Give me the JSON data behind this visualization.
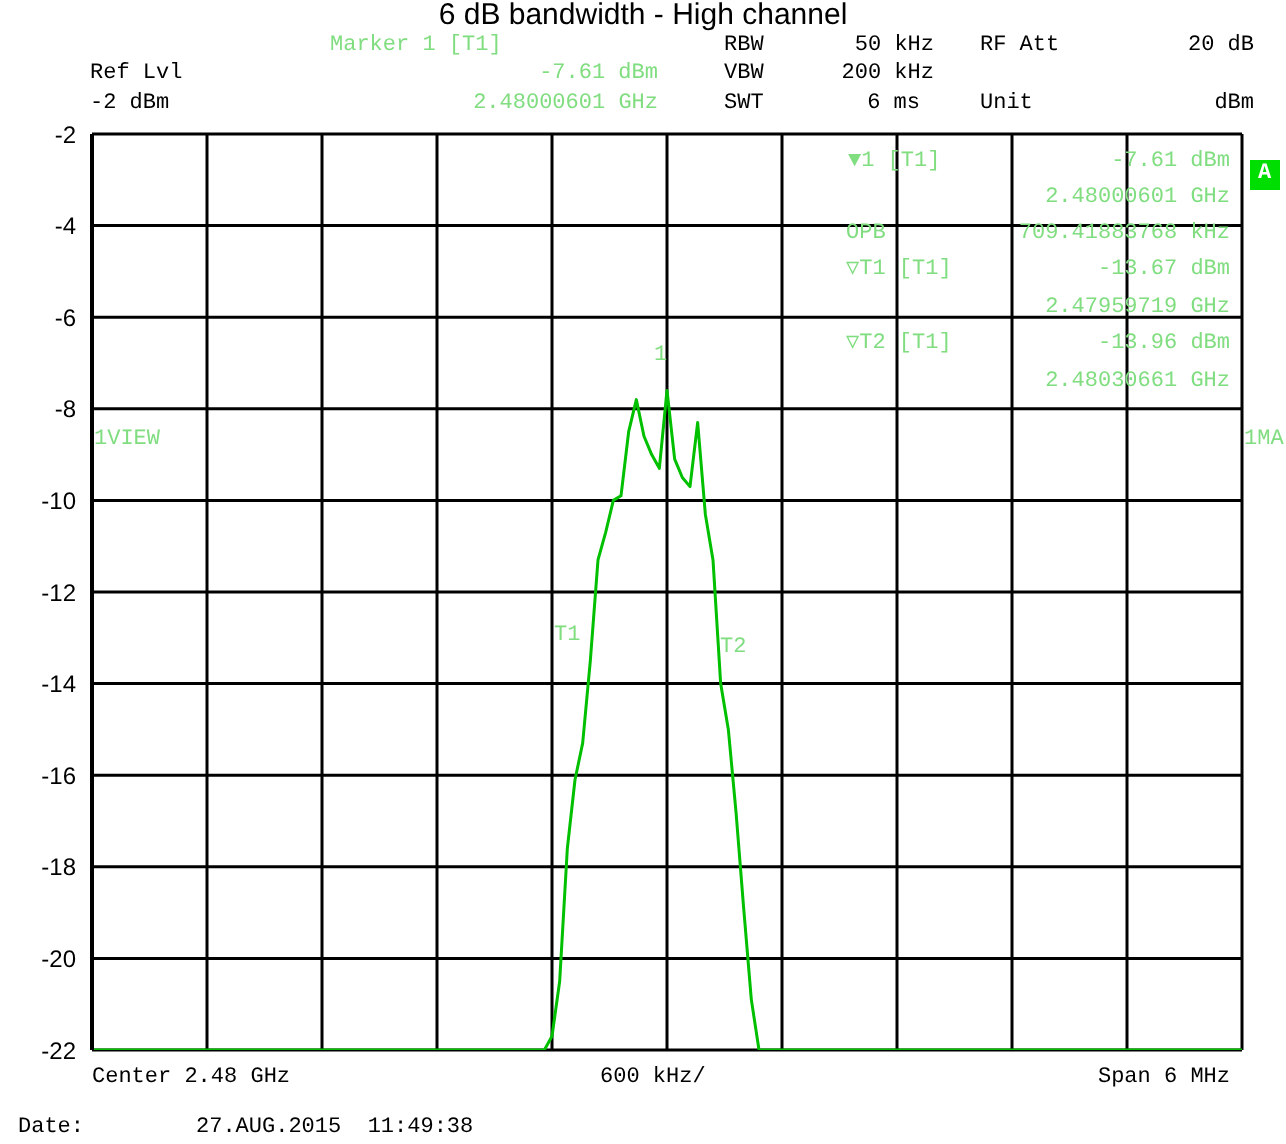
{
  "chart_data": {
    "type": "line",
    "title": "6 dB bandwidth - High channel",
    "categories": [
      null,
      null,
      null,
      null,
      null,
      null,
      null,
      null,
      null,
      null,
      null,
      null,
      null,
      null,
      null,
      null,
      null,
      null,
      null,
      null,
      null,
      null,
      null,
      null,
      null,
      null,
      null,
      null,
      null,
      null,
      null,
      null,
      null,
      null,
      null,
      null,
      null,
      null,
      null,
      null,
      null,
      null,
      null,
      null,
      null,
      null,
      null,
      null,
      null,
      null,
      null,
      null,
      null,
      null,
      null,
      null,
      null,
      null,
      null,
      null,
      null,
      null,
      null,
      null,
      null,
      null,
      null,
      null,
      null,
      null,
      null,
      null,
      null,
      null,
      null,
      null,
      null,
      null,
      null,
      null,
      null,
      null,
      null,
      null,
      null,
      null,
      null,
      null,
      null,
      null,
      null,
      null,
      null,
      null,
      null,
      null,
      null,
      null,
      null,
      null,
      null,
      null,
      null,
      null,
      null,
      null,
      null,
      null,
      null,
      null,
      null,
      null,
      null,
      null,
      null,
      null,
      null,
      null,
      null,
      null,
      null,
      null,
      null,
      null,
      null,
      null,
      null,
      null,
      null,
      null,
      null,
      null,
      null,
      null,
      null,
      null,
      null,
      null,
      null,
      null,
      null,
      null,
      null,
      null,
      null,
      null,
      null,
      null,
      null,
      null,
      null
    ],
    "series": [
      {
        "color": "#00c000",
        "values": [
          -22,
          -22,
          -22,
          -22,
          -22,
          -22,
          -22,
          -22,
          -22,
          -22,
          -22,
          -22,
          -22,
          -22,
          -22,
          -22,
          -22,
          -22,
          -22,
          -22,
          -22,
          -22,
          -22,
          -22,
          -22,
          -22,
          -22,
          -22,
          -22,
          -22,
          -22,
          -22,
          -22,
          -22,
          -22,
          -22,
          -22,
          -22,
          -22,
          -22,
          -22,
          -22,
          -22,
          -22,
          -22,
          -22,
          -22,
          -22,
          -22,
          -22,
          -22,
          -22,
          -22,
          -22,
          -22,
          -22,
          -22,
          -22,
          -22,
          -22,
          -21.7,
          -20.5,
          -17.6,
          -16.1,
          -15.3,
          -13.5,
          -11.3,
          -10.7,
          -10.0,
          -9.9,
          -8.5,
          -7.8,
          -8.6,
          -9.0,
          -9.3,
          -7.6,
          -9.1,
          -9.5,
          -9.7,
          -8.3,
          -10.3,
          -11.3,
          -14.0,
          -15.0,
          -16.8,
          -18.9,
          -20.9,
          -22,
          -22,
          -22,
          -22,
          -22,
          -22,
          -22,
          -22,
          -22,
          -22,
          -22,
          -22,
          -22,
          -22,
          -22,
          -22,
          -22,
          -22,
          -22,
          -22,
          -22,
          -22,
          -22,
          -22,
          -22,
          -22,
          -22,
          -22,
          -22,
          -22,
          -22,
          -22,
          -22,
          -22,
          -22,
          -22,
          -22,
          -22,
          -22,
          -22,
          -22,
          -22,
          -22,
          -22,
          -22,
          -22,
          -22,
          -22,
          -22,
          -22,
          -22,
          -22,
          -22,
          -22,
          -22,
          -22,
          -22,
          -22,
          -22,
          -22,
          -22,
          -22,
          -22,
          -22
        ]
      }
    ],
    "ylim": [
      -22,
      -2
    ],
    "yticks": [
      -22,
      -20,
      -18,
      -16,
      -14,
      -12,
      -10,
      -8,
      -6,
      -4,
      -2
    ],
    "grid": true,
    "tick_labels": "y",
    "marker": "none",
    "line_style": "solid",
    "annotations": [
      "Marker 1 [T1]",
      "Ref Lvl",
      "-7.61 dBm",
      "-2 dBm",
      "2.48000601 GHz",
      "RBW",
      "50 kHz",
      "VBW",
      "200 kHz",
      "SWT",
      "6 ms",
      "RF Att",
      "20 dB",
      "Unit",
      "dBm",
      "▼1 [T1]",
      "-7.61 dBm",
      "2.48000601 GHz",
      "OPB",
      "709.41883768 kHz",
      "▽T1 [T1]",
      "-13.67 dBm",
      "2.47959719 GHz",
      "▽T2 [T1]",
      "-13.96 dBm",
      "2.48030661 GHz",
      "1VIEW",
      "1MA",
      "A",
      "Center 2.48 GHz",
      "600 kHz/",
      "Span 6 MHz",
      "Date:",
      "27.AUG.2015  11:49:38",
      "1",
      "T1",
      "T2"
    ]
  }
}
